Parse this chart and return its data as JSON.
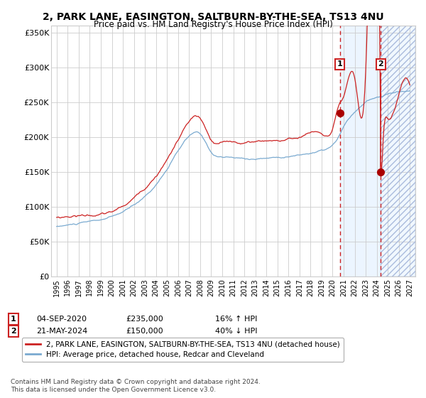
{
  "title": "2, PARK LANE, EASINGTON, SALTBURN-BY-THE-SEA, TS13 4NU",
  "subtitle": "Price paid vs. HM Land Registry's House Price Index (HPI)",
  "legend_line1": "2, PARK LANE, EASINGTON, SALTBURN-BY-THE-SEA, TS13 4NU (detached house)",
  "legend_line2": "HPI: Average price, detached house, Redcar and Cleveland",
  "footnote": "Contains HM Land Registry data © Crown copyright and database right 2024.\nThis data is licensed under the Open Government Licence v3.0.",
  "transaction1_date": "04-SEP-2020",
  "transaction1_price": 235000,
  "transaction1_hpi": "16% ↑ HPI",
  "transaction2_date": "21-MAY-2024",
  "transaction2_price": 150000,
  "transaction2_hpi": "40% ↓ HPI",
  "hpi_color": "#7aaad0",
  "price_color": "#cc2222",
  "marker_color": "#aa0000",
  "vline1_color": "#cc2222",
  "vline2_color": "#cc2222",
  "future_bg_color": "#ddeeff",
  "ylim": [
    0,
    360000
  ],
  "yticks": [
    0,
    50000,
    100000,
    150000,
    200000,
    250000,
    300000,
    350000
  ],
  "xlim_start": 1994.5,
  "xlim_end": 2027.5,
  "transaction1_x": 2020.67,
  "transaction1_y": 235000,
  "transaction2_x": 2024.38,
  "transaction2_y": 150000,
  "transaction2_top_y": 290000,
  "hpi_seed": 10,
  "price_seed": 20
}
